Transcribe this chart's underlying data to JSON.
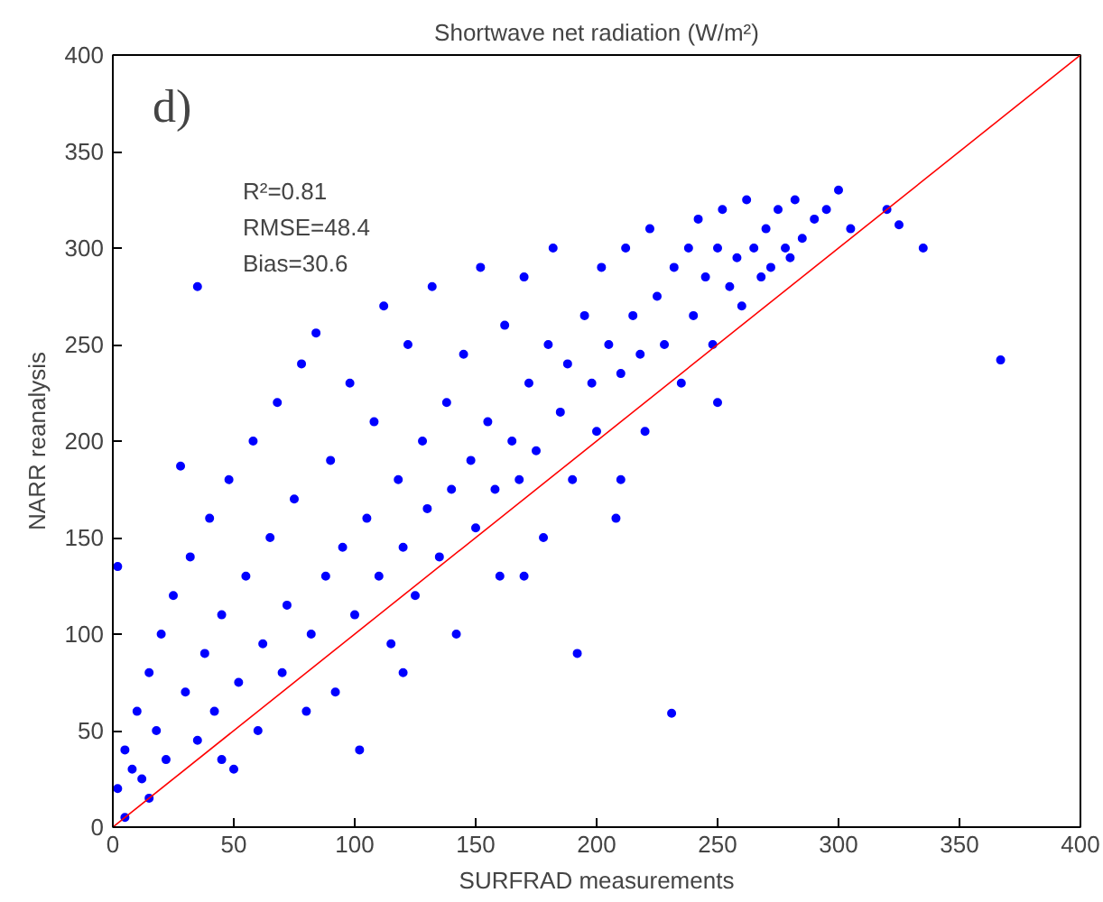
{
  "chart_data": {
    "type": "scatter",
    "title": "Shortwave net radiation (W/m²)",
    "xlabel": "SURFRAD measurements",
    "ylabel": "NARR reanalysis",
    "xlim": [
      0,
      400
    ],
    "ylim": [
      0,
      400
    ],
    "xticks": [
      0,
      50,
      100,
      150,
      200,
      250,
      300,
      350,
      400
    ],
    "yticks": [
      0,
      50,
      100,
      150,
      200,
      250,
      300,
      350,
      400
    ],
    "grid": false,
    "marker": "circle",
    "annotations": [
      "d)",
      "R²=0.81",
      "RMSE=48.4",
      "Bias=30.6"
    ],
    "series": [
      {
        "color": "#0000ff",
        "x": [
          2,
          5,
          8,
          10,
          12,
          15,
          18,
          20,
          22,
          25,
          28,
          30,
          32,
          35,
          35,
          38,
          40,
          42,
          45,
          48,
          50,
          52,
          55,
          58,
          60,
          62,
          65,
          68,
          70,
          72,
          75,
          78,
          80,
          82,
          84,
          88,
          90,
          92,
          95,
          98,
          100,
          102,
          105,
          108,
          110,
          112,
          115,
          118,
          120,
          122,
          125,
          128,
          130,
          132,
          135,
          138,
          140,
          142,
          145,
          148,
          150,
          152,
          155,
          158,
          160,
          162,
          165,
          168,
          170,
          172,
          175,
          178,
          180,
          182,
          185,
          188,
          190,
          192,
          195,
          198,
          200,
          202,
          205,
          208,
          210,
          212,
          215,
          218,
          220,
          222,
          225,
          228,
          231,
          232,
          235,
          238,
          240,
          242,
          245,
          248,
          250,
          252,
          255,
          258,
          260,
          262,
          265,
          268,
          270,
          272,
          275,
          278,
          280,
          282,
          285,
          290,
          295,
          300,
          305,
          320,
          325,
          335,
          367,
          2,
          5,
          15,
          45,
          120,
          170,
          210,
          250
        ],
        "values": [
          20,
          40,
          30,
          60,
          25,
          80,
          50,
          100,
          35,
          120,
          187,
          70,
          140,
          280,
          45,
          90,
          160,
          60,
          110,
          180,
          30,
          75,
          130,
          200,
          50,
          95,
          150,
          220,
          80,
          115,
          170,
          240,
          60,
          100,
          256,
          130,
          190,
          70,
          145,
          230,
          110,
          40,
          160,
          210,
          130,
          270,
          95,
          180,
          145,
          250,
          120,
          200,
          165,
          280,
          140,
          220,
          175,
          100,
          245,
          190,
          155,
          290,
          210,
          175,
          130,
          260,
          200,
          180,
          285,
          230,
          195,
          150,
          250,
          300,
          215,
          240,
          180,
          90,
          265,
          230,
          205,
          290,
          250,
          160,
          235,
          300,
          265,
          245,
          205,
          310,
          275,
          250,
          59,
          290,
          230,
          300,
          265,
          315,
          285,
          250,
          300,
          320,
          280,
          295,
          270,
          325,
          300,
          285,
          310,
          290,
          320,
          300,
          295,
          325,
          305,
          315,
          320,
          330,
          310,
          320,
          312,
          300,
          242,
          135,
          5,
          15,
          35,
          80,
          130,
          180,
          220
        ]
      },
      {
        "type": "line",
        "color": "#ff0000",
        "x": [
          0,
          400
        ],
        "values": [
          0,
          400
        ],
        "line_style": "solid",
        "marker": "none"
      }
    ]
  }
}
